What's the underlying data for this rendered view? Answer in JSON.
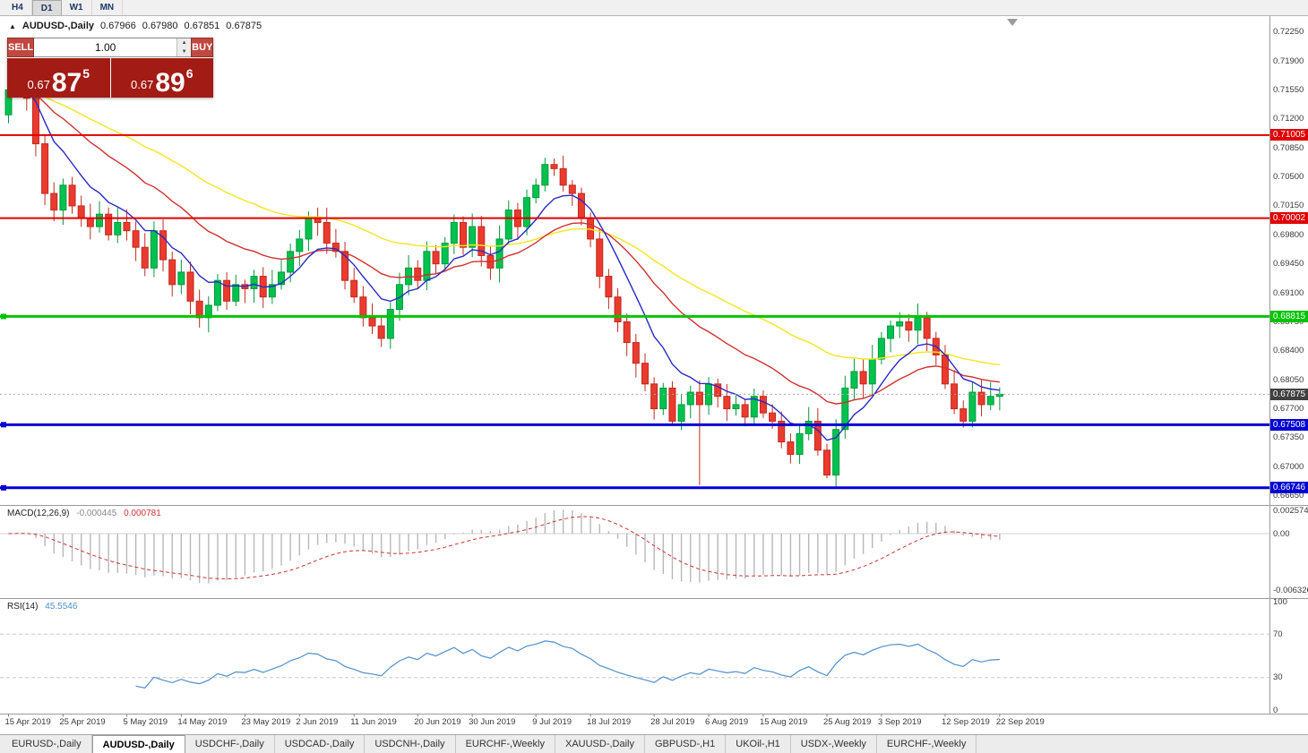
{
  "toolbar": {
    "timeframes": [
      {
        "label": "H4",
        "active": false
      },
      {
        "label": "D1",
        "active": true
      },
      {
        "label": "W1",
        "active": false
      },
      {
        "label": "MN",
        "active": false
      }
    ]
  },
  "title": {
    "collapse_icon": "▲",
    "symbol": "AUDUSD-,Daily",
    "open": "0.67966",
    "high": "0.67980",
    "low": "0.67851",
    "close": "0.67875"
  },
  "trade_panel": {
    "sell_label": "SELL",
    "buy_label": "BUY",
    "volume": "1.00",
    "sell_price_prefix": "0.67",
    "sell_price_big": "87",
    "sell_price_sup": "5",
    "buy_price_prefix": "0.67",
    "buy_price_big": "89",
    "buy_price_sup": "6"
  },
  "chart_data": {
    "type": "candlestick",
    "symbol": "AUDUSD-",
    "timeframe": "Daily",
    "x_labels": [
      "15 Apr 2019",
      "25 Apr 2019",
      "5 May 2019",
      "14 May 2019",
      "23 May 2019",
      "2 Jun 2019",
      "11 Jun 2019",
      "20 Jun 2019",
      "30 Jun 2019",
      "9 Jul 2019",
      "18 Jul 2019",
      "28 Jul 2019",
      "6 Aug 2019",
      "15 Aug 2019",
      "25 Aug 2019",
      "3 Sep 2019",
      "12 Sep 2019",
      "22 Sep 2019"
    ],
    "first_open": 0.7125,
    "closes": [
      0.7155,
      0.717,
      0.7145,
      0.709,
      0.703,
      0.701,
      0.704,
      0.7015,
      0.7,
      0.699,
      0.7005,
      0.698,
      0.6995,
      0.6985,
      0.6965,
      0.694,
      0.6985,
      0.695,
      0.692,
      0.6935,
      0.69,
      0.688,
      0.6895,
      0.6925,
      0.69,
      0.692,
      0.6915,
      0.693,
      0.6905,
      0.692,
      0.6935,
      0.696,
      0.6975,
      0.7,
      0.6995,
      0.697,
      0.696,
      0.6925,
      0.6905,
      0.688,
      0.687,
      0.6855,
      0.689,
      0.692,
      0.694,
      0.6925,
      0.696,
      0.6945,
      0.697,
      0.6995,
      0.6965,
      0.699,
      0.6955,
      0.694,
      0.6975,
      0.701,
      0.699,
      0.7025,
      0.704,
      0.7065,
      0.706,
      0.704,
      0.703,
      0.7,
      0.6975,
      0.693,
      0.6905,
      0.6875,
      0.685,
      0.6825,
      0.68,
      0.677,
      0.6795,
      0.6755,
      0.6775,
      0.679,
      0.6775,
      0.68,
      0.6785,
      0.677,
      0.6775,
      0.676,
      0.6785,
      0.6765,
      0.6755,
      0.673,
      0.6715,
      0.674,
      0.6755,
      0.672,
      0.669,
      0.6745,
      0.6795,
      0.6815,
      0.68,
      0.683,
      0.6855,
      0.687,
      0.6875,
      0.6865,
      0.688,
      0.6855,
      0.6835,
      0.68,
      0.677,
      0.6755,
      0.679,
      0.6775,
      0.6785,
      0.67875
    ],
    "special_lows": {
      "76": 0.6678,
      "90": 0.6686
    },
    "price_axis": {
      "top": 0.7242,
      "bottom": 0.6656,
      "labels": [
        "0.72250",
        "0.71900",
        "0.71550",
        "0.71200",
        "0.70850",
        "0.70500",
        "0.70150",
        "0.69800",
        "0.69450",
        "0.69100",
        "0.68750",
        "0.68400",
        "0.68050",
        "0.67700",
        "0.67350",
        "0.67000",
        "0.66650"
      ]
    },
    "candle_colors": {
      "up": "#00c24e",
      "up_stroke": "#009a3c",
      "down": "#ea3b2e",
      "down_stroke": "#c02a1f"
    },
    "moving_averages": [
      {
        "name": "fast",
        "period": 8,
        "color": "#2a2ac8"
      },
      {
        "name": "medium",
        "period": 22,
        "color": "#d03030"
      },
      {
        "name": "slow",
        "period": 45,
        "color": "#f2e71e"
      }
    ],
    "level_lines": [
      {
        "price": 0.71005,
        "label": "0.71005",
        "color": "#e00000",
        "width": 2,
        "handle": false
      },
      {
        "price": 0.70002,
        "label": "0.70002",
        "color": "#e00000",
        "width": 2,
        "handle": false
      },
      {
        "price": 0.68815,
        "label": "0.68815",
        "color": "#00c400",
        "width": 3,
        "handle": true
      },
      {
        "price": 0.67508,
        "label": "0.67508",
        "color": "#0000d4",
        "width": 3,
        "handle": true
      },
      {
        "price": 0.66746,
        "label": "0.66746",
        "color": "#0000d4",
        "width": 3,
        "handle": true
      }
    ],
    "current_price": {
      "label": "0.67875",
      "value": 0.67875,
      "box_color": "#404040"
    },
    "macd": {
      "label": "MACD(12,26,9)",
      "value_main": "-0.000445",
      "value_signal": "0.000781",
      "fast": 12,
      "slow": 26,
      "signal": 9,
      "axis_top": 0.003,
      "axis_bottom": -0.007,
      "scale_labels": [
        {
          "text": "0.002574",
          "value": 0.002574
        },
        {
          "text": "0.00",
          "value": 0
        },
        {
          "text": "-0.006326",
          "value": -0.006326
        }
      ],
      "bar_color": "#b8b8b8",
      "signal_color": "#cc3333"
    },
    "rsi": {
      "label": "RSI(14)",
      "value": "45.5546",
      "period": 14,
      "scale_labels": [
        100,
        70,
        30,
        0
      ],
      "level_lines": [
        70,
        30
      ],
      "line_color": "#4f8fcc"
    }
  },
  "tabs": [
    {
      "label": "EURUSD-,Daily",
      "active": false
    },
    {
      "label": "AUDUSD-,Daily",
      "active": true
    },
    {
      "label": "USDCHF-,Daily",
      "active": false
    },
    {
      "label": "USDCAD-,Daily",
      "active": false
    },
    {
      "label": "USDCNH-,Daily",
      "active": false
    },
    {
      "label": "EURCHF-,Weekly",
      "active": false
    },
    {
      "label": "XAUUSD-,Daily",
      "active": false
    },
    {
      "label": "GBPUSD-,H1",
      "active": false
    },
    {
      "label": "UKOil-,H1",
      "active": false
    },
    {
      "label": "USDX-,Weekly",
      "active": false
    },
    {
      "label": "EURCHF-,Weekly",
      "active": false
    }
  ]
}
